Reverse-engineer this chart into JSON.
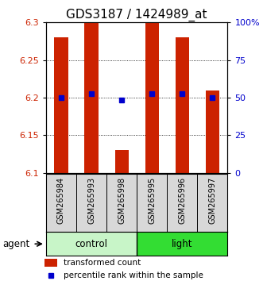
{
  "title": "GDS3187 / 1424989_at",
  "samples": [
    "GSM265984",
    "GSM265993",
    "GSM265998",
    "GSM265995",
    "GSM265996",
    "GSM265997"
  ],
  "groups": [
    "control",
    "control",
    "control",
    "light",
    "light",
    "light"
  ],
  "bar_values": [
    6.28,
    6.3,
    6.13,
    6.3,
    6.28,
    6.21
  ],
  "dot_values": [
    6.2,
    6.205,
    6.197,
    6.205,
    6.205,
    6.2
  ],
  "ylim": [
    6.1,
    6.3
  ],
  "y_ticks_left": [
    6.1,
    6.15,
    6.2,
    6.25,
    6.3
  ],
  "y_ticks_right": [
    0,
    25,
    50,
    75,
    100
  ],
  "bar_color": "#cc2200",
  "dot_color": "#0000cc",
  "bar_width": 0.45,
  "control_color": "#c8f5c8",
  "light_color": "#33dd33",
  "title_fontsize": 11,
  "tick_fontsize": 8,
  "label_fontsize": 8.5,
  "legend_fontsize": 7.5,
  "sample_fontsize": 7
}
